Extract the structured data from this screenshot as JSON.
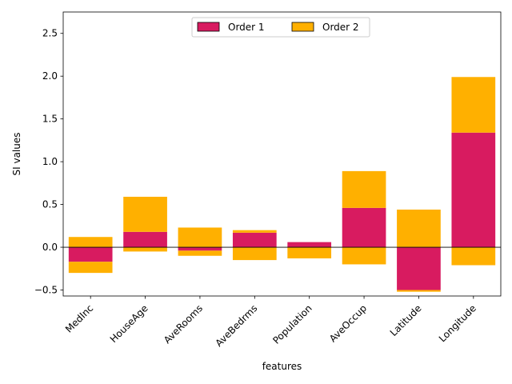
{
  "chart_data": {
    "type": "bar",
    "stacked": "positive and negative parts stacked separately",
    "categories": [
      "MedInc",
      "HouseAge",
      "AveRooms",
      "AveBedrms",
      "Population",
      "AveOccup",
      "Latitude",
      "Longitude"
    ],
    "series": [
      {
        "name": "Order 1",
        "color": "#d81b60",
        "values": [
          -0.17,
          0.18,
          -0.04,
          0.17,
          0.06,
          0.46,
          -0.5,
          1.34
        ]
      },
      {
        "name": "Order 2",
        "color": "#ffb000",
        "positive_values": [
          0.12,
          0.41,
          0.23,
          0.03,
          0.0,
          0.43,
          0.44,
          0.65
        ],
        "negative_values": [
          -0.13,
          -0.05,
          -0.06,
          -0.15,
          -0.13,
          -0.2,
          -0.02,
          -0.21
        ]
      }
    ],
    "xlabel": "features",
    "ylabel": "SI values",
    "ylim": [
      -0.57,
      2.75
    ],
    "yticks": [
      -0.5,
      0.0,
      0.5,
      1.0,
      1.5,
      2.0,
      2.5
    ],
    "ytick_labels": [
      "−0.5",
      "0.0",
      "0.5",
      "1.0",
      "1.5",
      "2.0",
      "2.5"
    ],
    "grid": false,
    "zero_line": true,
    "legend": {
      "placement": "top-center",
      "columns": 2
    }
  }
}
